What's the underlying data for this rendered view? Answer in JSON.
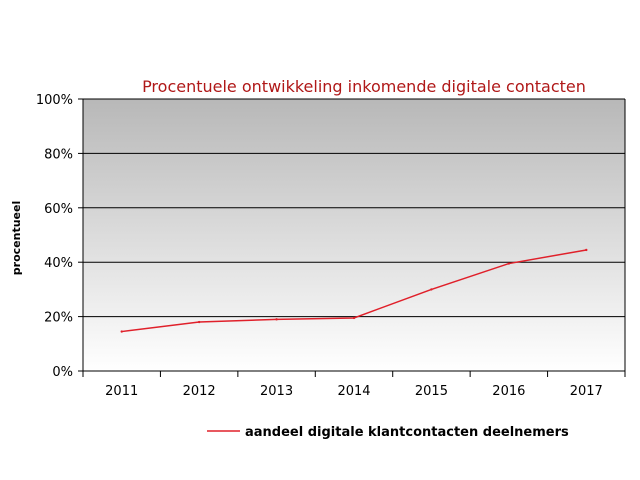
{
  "chart_data": {
    "type": "line",
    "title": "Procentuele ontwikkeling inkomende digitale contacten",
    "xlabel": "",
    "ylabel": "procentueel",
    "categories": [
      "2011",
      "2012",
      "2013",
      "2014",
      "2015",
      "2016",
      "2017"
    ],
    "ylim": [
      0,
      100
    ],
    "y_ticks": [
      0,
      20,
      40,
      60,
      80,
      100
    ],
    "y_tick_labels": [
      "0%",
      "20%",
      "40%",
      "60%",
      "80%",
      "100%"
    ],
    "grid": true,
    "legend_position": "bottom",
    "series": [
      {
        "name": "aandeel digitale klantcontacten deelnemers",
        "values": [
          14.5,
          18,
          19,
          19.5,
          30,
          39.5,
          44.5
        ],
        "color": "#e0202a"
      }
    ]
  },
  "colors": {
    "title": "#b01818",
    "plot_gradient_top": "#b8b8b8",
    "plot_gradient_bottom": "#ffffff",
    "gridline": "#000000"
  }
}
